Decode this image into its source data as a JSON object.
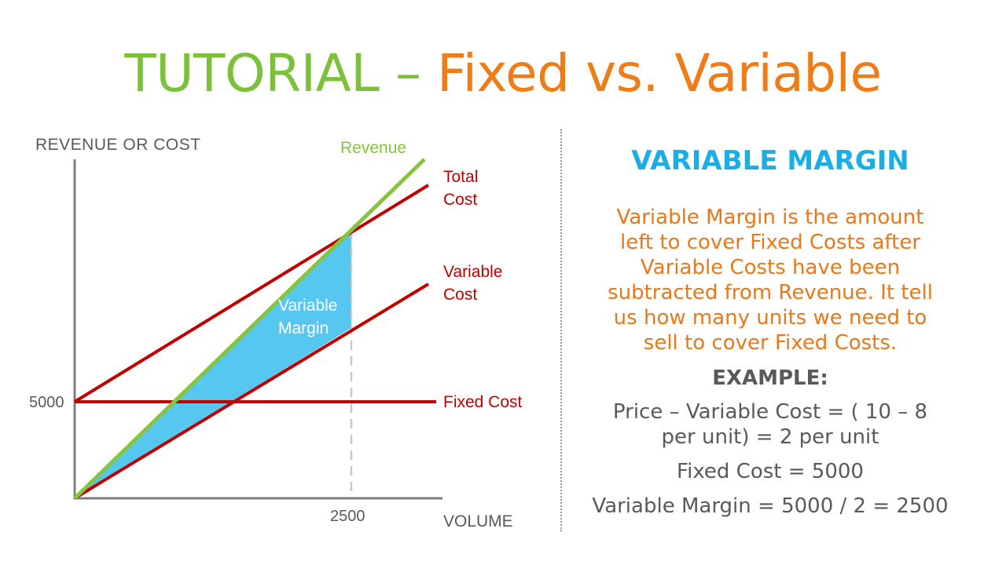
{
  "title": {
    "part1": "TUTORIAL – ",
    "part2": "Fixed vs. Variable"
  },
  "colors": {
    "title_green": "#7dc13a",
    "title_orange": "#ee7d18",
    "heading_blue": "#1aaee4",
    "body_orange": "#e8781a",
    "line_red": "#c00000",
    "revenue_green": "#86c440",
    "margin_fill": "#56c8f0",
    "axis_gray": "#7f7f7f",
    "label_gray": "#555555",
    "dark_text": "#595959"
  },
  "diagram": {
    "y_axis_label": "REVENUE OR COST",
    "x_axis_label": "VOLUME",
    "y_tick": "5000",
    "x_tick": "2500",
    "lines": {
      "revenue": "Revenue",
      "total_cost_1": "Total",
      "total_cost_2": "Cost",
      "variable_cost_1": "Variable",
      "variable_cost_2": "Cost",
      "fixed_cost": "Fixed Cost"
    },
    "margin_label_1": "Variable",
    "margin_label_2": "Margin"
  },
  "panel": {
    "heading": "VARIABLE MARGIN",
    "body": "Variable Margin is the amount left to cover Fixed Costs after Variable Costs have been subtracted from Revenue. It tell us how many units we need to sell to cover Fixed Costs.",
    "example_label": "EXAMPLE:",
    "example_lines": [
      "Price – Variable Cost = ( 10 – 8 per unit) = 2 per unit",
      "Fixed Cost = 5000",
      "Variable Margin = 5000 / 2 = 2500"
    ]
  }
}
